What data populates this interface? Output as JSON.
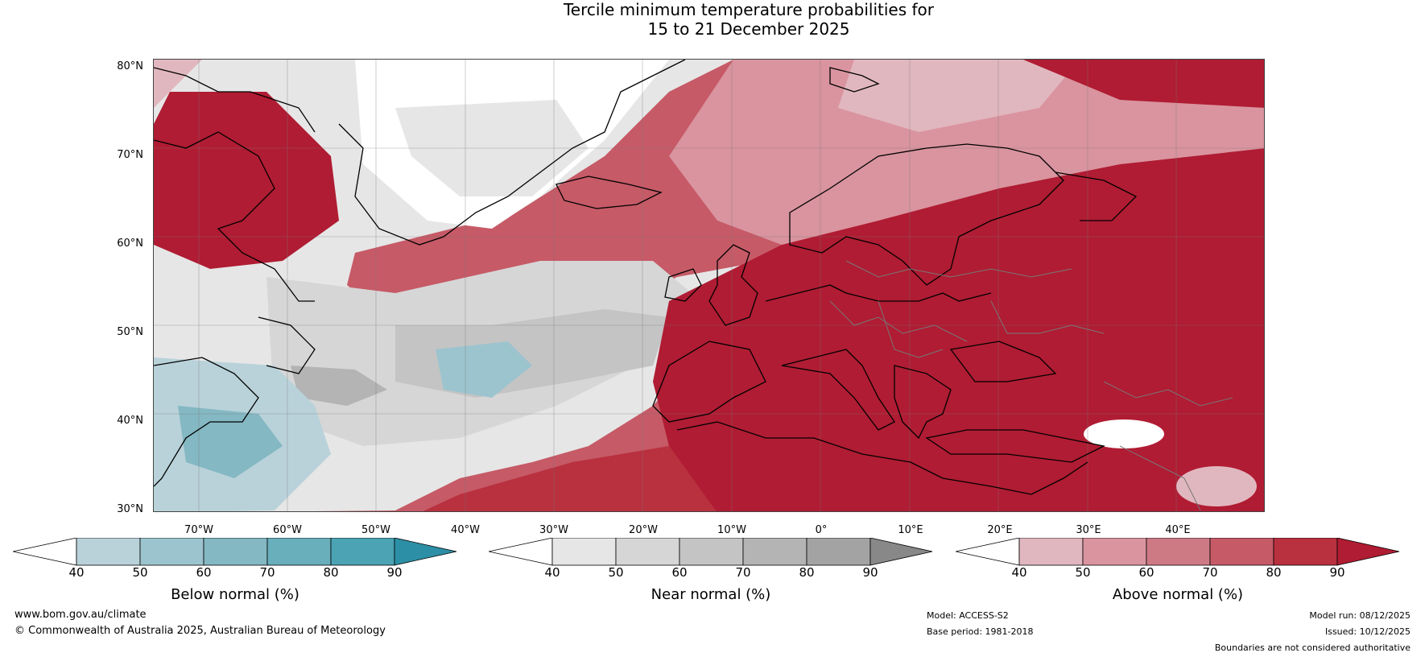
{
  "title_line1": "Tercile minimum temperature probabilities for",
  "title_line2": "15 to 21 December 2025",
  "map": {
    "lat_labels": [
      "80°N",
      "70°N",
      "60°N",
      "50°N",
      "40°N",
      "30°N"
    ],
    "lon_labels": [
      "70°W",
      "60°W",
      "50°W",
      "40°W",
      "30°W",
      "20°W",
      "10°W",
      "0°",
      "10°E",
      "20°E",
      "30°E",
      "40°E"
    ],
    "region": "North Atlantic and Europe",
    "colors": {
      "below": [
        "#b9d2da",
        "#9cc4ce",
        "#84b8c3",
        "#69aebb",
        "#4ba3b4",
        "#2c8fa5"
      ],
      "near": [
        "#e6e6e6",
        "#d6d6d6",
        "#c4c4c4",
        "#b4b4b4",
        "#a3a3a3",
        "#888888"
      ],
      "above": [
        "#e1b7bf",
        "#d9949f",
        "#ce7a85",
        "#c65a67",
        "#b9303f",
        "#b01c33"
      ]
    }
  },
  "colorbars": [
    {
      "title": "Below normal (%)",
      "ticks": [
        "40",
        "50",
        "60",
        "70",
        "80",
        "90"
      ]
    },
    {
      "title": "Near normal (%)",
      "ticks": [
        "40",
        "50",
        "60",
        "70",
        "80",
        "90"
      ]
    },
    {
      "title": "Above normal (%)",
      "ticks": [
        "40",
        "50",
        "60",
        "70",
        "80",
        "90"
      ]
    }
  ],
  "footer": {
    "website": "www.bom.gov.au/climate",
    "copyright": "© Commonwealth of Australia 2025, Australian Bureau of Meteorology",
    "model": "Model: ACCESS-S2",
    "base_period": "Base period: 1981-2018",
    "model_run": "Model run: 08/12/2025",
    "issued": "Issued: 10/12/2025",
    "disclaimer": "Boundaries are not considered authoritative"
  }
}
